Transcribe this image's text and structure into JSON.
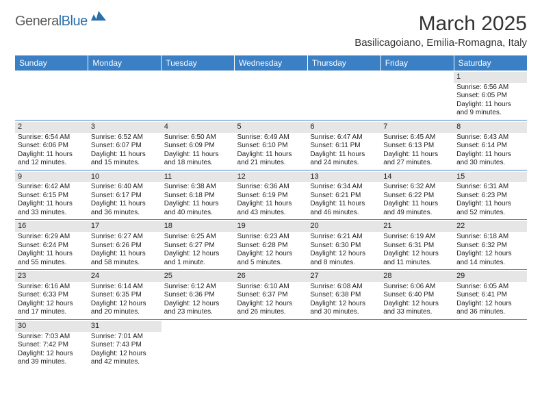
{
  "logo": {
    "part1": "Genera",
    "part2": "lBlue"
  },
  "title": "March 2025",
  "location": "Basilicagoiano, Emilia-Romagna, Italy",
  "style": {
    "header_bg": "#3b7fc4",
    "header_fg": "#ffffff",
    "daynum_bg": "#e6e6e6",
    "border_color": "#3b7fc4",
    "body_font_size": 10,
    "header_font_size": 12,
    "title_font_size": 30,
    "location_font_size": 15
  },
  "day_headers": [
    "Sunday",
    "Monday",
    "Tuesday",
    "Wednesday",
    "Thursday",
    "Friday",
    "Saturday"
  ],
  "weeks": [
    [
      {
        "n": "",
        "sr": "",
        "ss": "",
        "d1": "",
        "d2": ""
      },
      {
        "n": "",
        "sr": "",
        "ss": "",
        "d1": "",
        "d2": ""
      },
      {
        "n": "",
        "sr": "",
        "ss": "",
        "d1": "",
        "d2": ""
      },
      {
        "n": "",
        "sr": "",
        "ss": "",
        "d1": "",
        "d2": ""
      },
      {
        "n": "",
        "sr": "",
        "ss": "",
        "d1": "",
        "d2": ""
      },
      {
        "n": "",
        "sr": "",
        "ss": "",
        "d1": "",
        "d2": ""
      },
      {
        "n": "1",
        "sr": "Sunrise: 6:56 AM",
        "ss": "Sunset: 6:05 PM",
        "d1": "Daylight: 11 hours",
        "d2": "and 9 minutes."
      }
    ],
    [
      {
        "n": "2",
        "sr": "Sunrise: 6:54 AM",
        "ss": "Sunset: 6:06 PM",
        "d1": "Daylight: 11 hours",
        "d2": "and 12 minutes."
      },
      {
        "n": "3",
        "sr": "Sunrise: 6:52 AM",
        "ss": "Sunset: 6:07 PM",
        "d1": "Daylight: 11 hours",
        "d2": "and 15 minutes."
      },
      {
        "n": "4",
        "sr": "Sunrise: 6:50 AM",
        "ss": "Sunset: 6:09 PM",
        "d1": "Daylight: 11 hours",
        "d2": "and 18 minutes."
      },
      {
        "n": "5",
        "sr": "Sunrise: 6:49 AM",
        "ss": "Sunset: 6:10 PM",
        "d1": "Daylight: 11 hours",
        "d2": "and 21 minutes."
      },
      {
        "n": "6",
        "sr": "Sunrise: 6:47 AM",
        "ss": "Sunset: 6:11 PM",
        "d1": "Daylight: 11 hours",
        "d2": "and 24 minutes."
      },
      {
        "n": "7",
        "sr": "Sunrise: 6:45 AM",
        "ss": "Sunset: 6:13 PM",
        "d1": "Daylight: 11 hours",
        "d2": "and 27 minutes."
      },
      {
        "n": "8",
        "sr": "Sunrise: 6:43 AM",
        "ss": "Sunset: 6:14 PM",
        "d1": "Daylight: 11 hours",
        "d2": "and 30 minutes."
      }
    ],
    [
      {
        "n": "9",
        "sr": "Sunrise: 6:42 AM",
        "ss": "Sunset: 6:15 PM",
        "d1": "Daylight: 11 hours",
        "d2": "and 33 minutes."
      },
      {
        "n": "10",
        "sr": "Sunrise: 6:40 AM",
        "ss": "Sunset: 6:17 PM",
        "d1": "Daylight: 11 hours",
        "d2": "and 36 minutes."
      },
      {
        "n": "11",
        "sr": "Sunrise: 6:38 AM",
        "ss": "Sunset: 6:18 PM",
        "d1": "Daylight: 11 hours",
        "d2": "and 40 minutes."
      },
      {
        "n": "12",
        "sr": "Sunrise: 6:36 AM",
        "ss": "Sunset: 6:19 PM",
        "d1": "Daylight: 11 hours",
        "d2": "and 43 minutes."
      },
      {
        "n": "13",
        "sr": "Sunrise: 6:34 AM",
        "ss": "Sunset: 6:21 PM",
        "d1": "Daylight: 11 hours",
        "d2": "and 46 minutes."
      },
      {
        "n": "14",
        "sr": "Sunrise: 6:32 AM",
        "ss": "Sunset: 6:22 PM",
        "d1": "Daylight: 11 hours",
        "d2": "and 49 minutes."
      },
      {
        "n": "15",
        "sr": "Sunrise: 6:31 AM",
        "ss": "Sunset: 6:23 PM",
        "d1": "Daylight: 11 hours",
        "d2": "and 52 minutes."
      }
    ],
    [
      {
        "n": "16",
        "sr": "Sunrise: 6:29 AM",
        "ss": "Sunset: 6:24 PM",
        "d1": "Daylight: 11 hours",
        "d2": "and 55 minutes."
      },
      {
        "n": "17",
        "sr": "Sunrise: 6:27 AM",
        "ss": "Sunset: 6:26 PM",
        "d1": "Daylight: 11 hours",
        "d2": "and 58 minutes."
      },
      {
        "n": "18",
        "sr": "Sunrise: 6:25 AM",
        "ss": "Sunset: 6:27 PM",
        "d1": "Daylight: 12 hours",
        "d2": "and 1 minute."
      },
      {
        "n": "19",
        "sr": "Sunrise: 6:23 AM",
        "ss": "Sunset: 6:28 PM",
        "d1": "Daylight: 12 hours",
        "d2": "and 5 minutes."
      },
      {
        "n": "20",
        "sr": "Sunrise: 6:21 AM",
        "ss": "Sunset: 6:30 PM",
        "d1": "Daylight: 12 hours",
        "d2": "and 8 minutes."
      },
      {
        "n": "21",
        "sr": "Sunrise: 6:19 AM",
        "ss": "Sunset: 6:31 PM",
        "d1": "Daylight: 12 hours",
        "d2": "and 11 minutes."
      },
      {
        "n": "22",
        "sr": "Sunrise: 6:18 AM",
        "ss": "Sunset: 6:32 PM",
        "d1": "Daylight: 12 hours",
        "d2": "and 14 minutes."
      }
    ],
    [
      {
        "n": "23",
        "sr": "Sunrise: 6:16 AM",
        "ss": "Sunset: 6:33 PM",
        "d1": "Daylight: 12 hours",
        "d2": "and 17 minutes."
      },
      {
        "n": "24",
        "sr": "Sunrise: 6:14 AM",
        "ss": "Sunset: 6:35 PM",
        "d1": "Daylight: 12 hours",
        "d2": "and 20 minutes."
      },
      {
        "n": "25",
        "sr": "Sunrise: 6:12 AM",
        "ss": "Sunset: 6:36 PM",
        "d1": "Daylight: 12 hours",
        "d2": "and 23 minutes."
      },
      {
        "n": "26",
        "sr": "Sunrise: 6:10 AM",
        "ss": "Sunset: 6:37 PM",
        "d1": "Daylight: 12 hours",
        "d2": "and 26 minutes."
      },
      {
        "n": "27",
        "sr": "Sunrise: 6:08 AM",
        "ss": "Sunset: 6:38 PM",
        "d1": "Daylight: 12 hours",
        "d2": "and 30 minutes."
      },
      {
        "n": "28",
        "sr": "Sunrise: 6:06 AM",
        "ss": "Sunset: 6:40 PM",
        "d1": "Daylight: 12 hours",
        "d2": "and 33 minutes."
      },
      {
        "n": "29",
        "sr": "Sunrise: 6:05 AM",
        "ss": "Sunset: 6:41 PM",
        "d1": "Daylight: 12 hours",
        "d2": "and 36 minutes."
      }
    ],
    [
      {
        "n": "30",
        "sr": "Sunrise: 7:03 AM",
        "ss": "Sunset: 7:42 PM",
        "d1": "Daylight: 12 hours",
        "d2": "and 39 minutes."
      },
      {
        "n": "31",
        "sr": "Sunrise: 7:01 AM",
        "ss": "Sunset: 7:43 PM",
        "d1": "Daylight: 12 hours",
        "d2": "and 42 minutes."
      },
      {
        "n": "",
        "sr": "",
        "ss": "",
        "d1": "",
        "d2": ""
      },
      {
        "n": "",
        "sr": "",
        "ss": "",
        "d1": "",
        "d2": ""
      },
      {
        "n": "",
        "sr": "",
        "ss": "",
        "d1": "",
        "d2": ""
      },
      {
        "n": "",
        "sr": "",
        "ss": "",
        "d1": "",
        "d2": ""
      },
      {
        "n": "",
        "sr": "",
        "ss": "",
        "d1": "",
        "d2": ""
      }
    ]
  ]
}
